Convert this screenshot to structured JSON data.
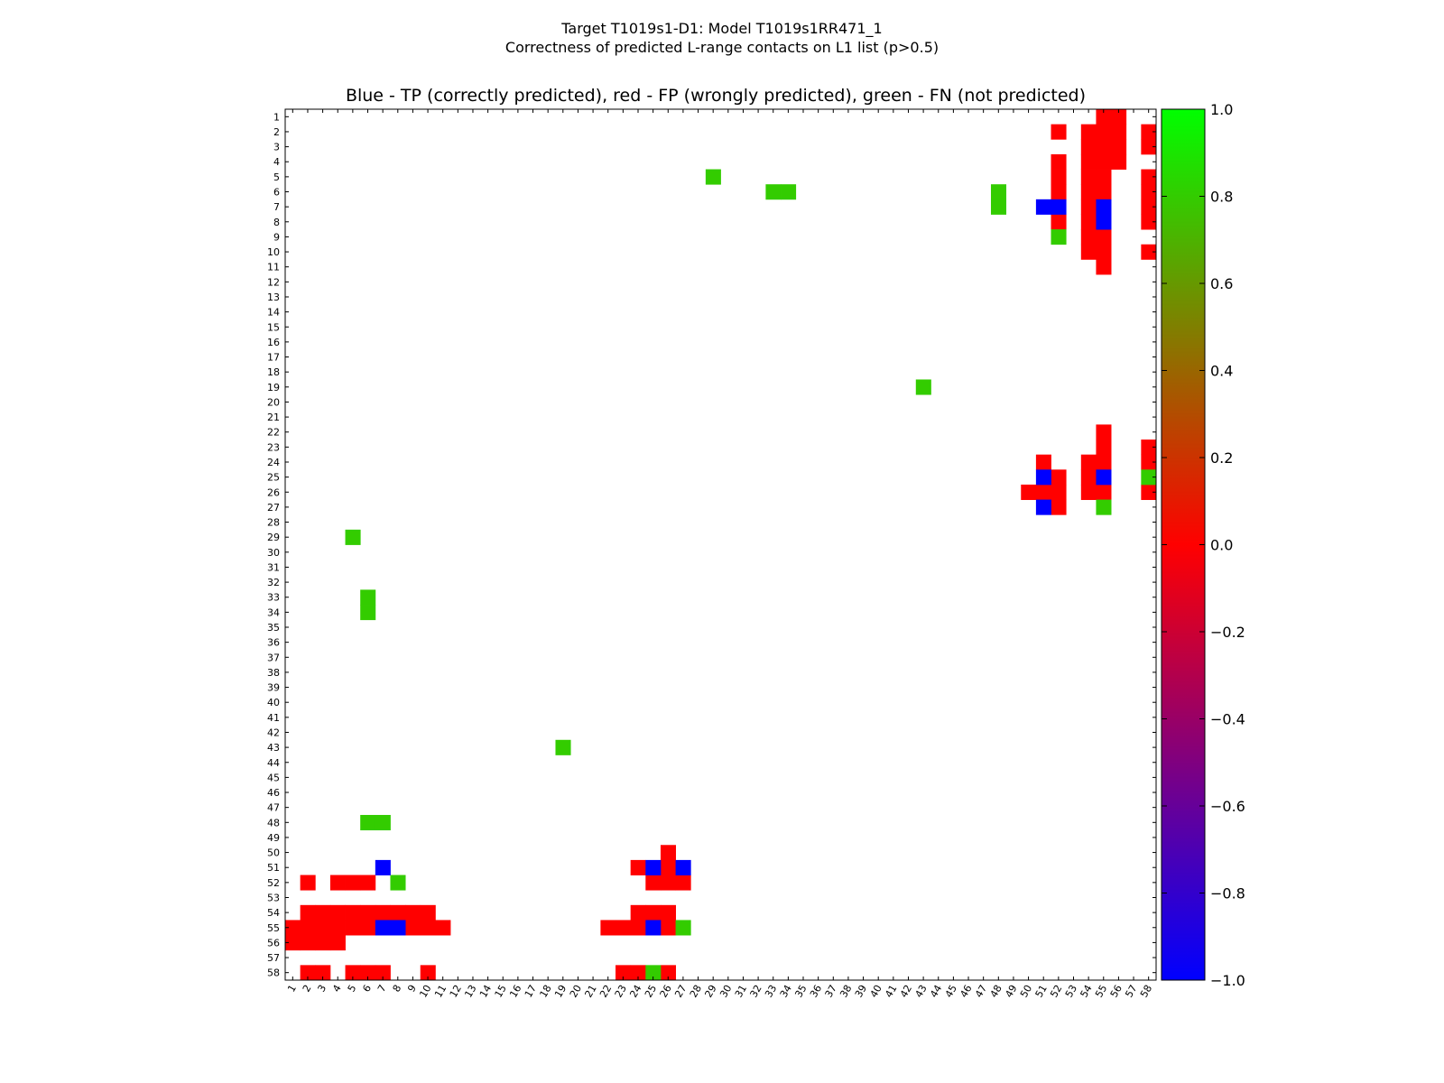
{
  "figure": {
    "suptitle_line1": "Target T1019s1-D1: Model T1019s1RR471_1",
    "suptitle_line2": "Correctness of predicted L-range contacts on L1 list (p>0.5)"
  },
  "chart_data": {
    "type": "heatmap",
    "title": "Blue - TP (correctly predicted), red - FP (wrongly predicted), green - FN (not predicted)",
    "n": 58,
    "x_ticks": [
      "1",
      "2",
      "3",
      "4",
      "5",
      "6",
      "7",
      "8",
      "9",
      "10",
      "11",
      "12",
      "13",
      "14",
      "15",
      "16",
      "17",
      "18",
      "19",
      "20",
      "21",
      "22",
      "23",
      "24",
      "25",
      "26",
      "27",
      "28",
      "29",
      "30",
      "31",
      "32",
      "33",
      "34",
      "35",
      "36",
      "37",
      "38",
      "39",
      "40",
      "41",
      "42",
      "43",
      "44",
      "45",
      "46",
      "47",
      "48",
      "49",
      "50",
      "51",
      "52",
      "53",
      "54",
      "55",
      "56",
      "57",
      "58"
    ],
    "y_ticks": [
      "1",
      "2",
      "3",
      "4",
      "5",
      "6",
      "7",
      "8",
      "9",
      "10",
      "11",
      "12",
      "13",
      "14",
      "15",
      "16",
      "17",
      "18",
      "19",
      "20",
      "21",
      "22",
      "23",
      "24",
      "25",
      "26",
      "27",
      "28",
      "29",
      "30",
      "31",
      "32",
      "33",
      "34",
      "35",
      "36",
      "37",
      "38",
      "39",
      "40",
      "41",
      "42",
      "43",
      "44",
      "45",
      "46",
      "47",
      "48",
      "49",
      "50",
      "51",
      "52",
      "53",
      "54",
      "55",
      "56",
      "57",
      "58"
    ],
    "colorbar": {
      "min": -1.0,
      "max": 1.0,
      "ticks": [
        "1.0",
        "0.8",
        "0.6",
        "0.4",
        "0.2",
        "0.0",
        "−0.2",
        "−0.4",
        "−0.6",
        "−0.8",
        "−1.0"
      ],
      "colormap": [
        "#0000ff",
        "#ff0000",
        "#00ff00"
      ]
    },
    "legend": {
      "tp": -1,
      "fp": 0,
      "fn": 0.8
    },
    "colors": {
      "tp": "#0000ff",
      "fp": "#ff0000",
      "fn": "#33cc00"
    },
    "cells": {
      "tp": [
        [
          7,
          51
        ],
        [
          7,
          52
        ],
        [
          7,
          55
        ],
        [
          8,
          55
        ],
        [
          25,
          51
        ],
        [
          25,
          55
        ],
        [
          27,
          51
        ],
        [
          51,
          7
        ],
        [
          51,
          25
        ],
        [
          51,
          27
        ],
        [
          55,
          7
        ],
        [
          55,
          8
        ],
        [
          55,
          25
        ]
      ],
      "fp": [
        [
          1,
          55
        ],
        [
          1,
          56
        ],
        [
          2,
          52
        ],
        [
          2,
          54
        ],
        [
          2,
          55
        ],
        [
          2,
          56
        ],
        [
          2,
          58
        ],
        [
          3,
          54
        ],
        [
          3,
          55
        ],
        [
          3,
          56
        ],
        [
          3,
          58
        ],
        [
          4,
          52
        ],
        [
          4,
          54
        ],
        [
          4,
          55
        ],
        [
          4,
          56
        ],
        [
          5,
          52
        ],
        [
          5,
          54
        ],
        [
          5,
          55
        ],
        [
          5,
          58
        ],
        [
          6,
          52
        ],
        [
          6,
          54
        ],
        [
          6,
          55
        ],
        [
          6,
          58
        ],
        [
          7,
          54
        ],
        [
          7,
          58
        ],
        [
          8,
          52
        ],
        [
          8,
          54
        ],
        [
          8,
          58
        ],
        [
          9,
          54
        ],
        [
          9,
          55
        ],
        [
          10,
          54
        ],
        [
          10,
          55
        ],
        [
          10,
          58
        ],
        [
          11,
          55
        ],
        [
          22,
          55
        ],
        [
          23,
          55
        ],
        [
          23,
          58
        ],
        [
          24,
          51
        ],
        [
          24,
          54
        ],
        [
          24,
          55
        ],
        [
          24,
          58
        ],
        [
          25,
          52
        ],
        [
          25,
          54
        ],
        [
          26,
          50
        ],
        [
          26,
          51
        ],
        [
          26,
          52
        ],
        [
          26,
          54
        ],
        [
          26,
          55
        ],
        [
          26,
          58
        ],
        [
          27,
          52
        ],
        [
          50,
          26
        ],
        [
          51,
          24
        ],
        [
          51,
          26
        ],
        [
          52,
          2
        ],
        [
          52,
          4
        ],
        [
          52,
          5
        ],
        [
          52,
          6
        ],
        [
          52,
          25
        ],
        [
          52,
          26
        ],
        [
          52,
          27
        ],
        [
          54,
          2
        ],
        [
          54,
          3
        ],
        [
          54,
          4
        ],
        [
          54,
          5
        ],
        [
          54,
          6
        ],
        [
          54,
          7
        ],
        [
          54,
          8
        ],
        [
          54,
          9
        ],
        [
          54,
          10
        ],
        [
          54,
          24
        ],
        [
          54,
          25
        ],
        [
          54,
          26
        ],
        [
          55,
          1
        ],
        [
          55,
          2
        ],
        [
          55,
          3
        ],
        [
          55,
          4
        ],
        [
          55,
          5
        ],
        [
          55,
          6
        ],
        [
          55,
          9
        ],
        [
          55,
          10
        ],
        [
          55,
          11
        ],
        [
          55,
          22
        ],
        [
          55,
          23
        ],
        [
          55,
          24
        ],
        [
          55,
          26
        ],
        [
          56,
          1
        ],
        [
          56,
          2
        ],
        [
          56,
          3
        ],
        [
          56,
          4
        ],
        [
          58,
          2
        ],
        [
          58,
          3
        ],
        [
          58,
          5
        ],
        [
          58,
          6
        ],
        [
          58,
          7
        ],
        [
          58,
          10
        ],
        [
          58,
          23
        ],
        [
          58,
          24
        ],
        [
          58,
          26
        ]
      ],
      "fn": [
        [
          5,
          29
        ],
        [
          6,
          33
        ],
        [
          6,
          34
        ],
        [
          6,
          48
        ],
        [
          7,
          48
        ],
        [
          9,
          52
        ],
        [
          19,
          43
        ],
        [
          25,
          58
        ],
        [
          27,
          55
        ],
        [
          29,
          5
        ],
        [
          33,
          6
        ],
        [
          34,
          6
        ],
        [
          43,
          19
        ],
        [
          48,
          6
        ],
        [
          48,
          7
        ],
        [
          52,
          8
        ],
        [
          55,
          27
        ],
        [
          58,
          25
        ]
      ]
    }
  }
}
